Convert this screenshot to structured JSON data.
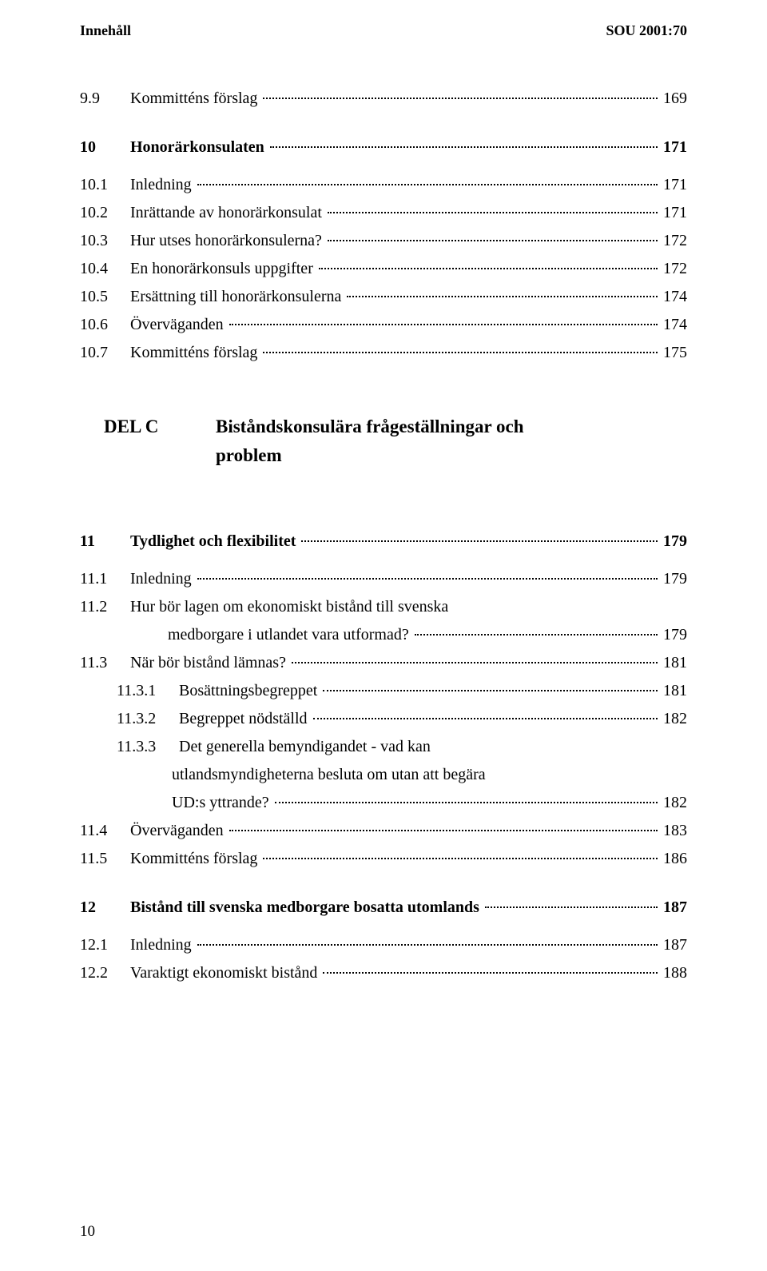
{
  "header": {
    "left": "Innehåll",
    "right": "SOU 2001:70"
  },
  "footer": {
    "page": "10"
  },
  "delc": {
    "label": "DEL C",
    "title_l1": "Biståndskonsulära frågeställningar och",
    "title_l2": "problem"
  },
  "toc": {
    "r1": {
      "num": "9.9",
      "label": "Kommitténs förslag",
      "page": "169"
    },
    "r2": {
      "num": "10",
      "label": "Honorärkonsulaten",
      "page": "171"
    },
    "r3": {
      "num": "10.1",
      "label": "Inledning",
      "page": "171"
    },
    "r4": {
      "num": "10.2",
      "label": "Inrättande av honorärkonsulat",
      "page": "171"
    },
    "r5": {
      "num": "10.3",
      "label": "Hur utses honorärkonsulerna?",
      "page": "172"
    },
    "r6": {
      "num": "10.4",
      "label": "En honorärkonsuls uppgifter",
      "page": "172"
    },
    "r7": {
      "num": "10.5",
      "label": "Ersättning till honorärkonsulerna",
      "page": "174"
    },
    "r8": {
      "num": "10.6",
      "label": "Överväganden",
      "page": "174"
    },
    "r9": {
      "num": "10.7",
      "label": "Kommitténs förslag",
      "page": "175"
    },
    "r10": {
      "num": "11",
      "label": "Tydlighet och flexibilitet",
      "page": "179"
    },
    "r11": {
      "num": "11.1",
      "label": "Inledning",
      "page": "179"
    },
    "r12": {
      "num": "11.2",
      "label_l1": "Hur bör lagen om ekonomiskt bistånd till svenska",
      "label_l2": "medborgare i utlandet vara utformad?",
      "page": "179"
    },
    "r13": {
      "num": "11.3",
      "label": "När bör bistånd lämnas?",
      "page": "181"
    },
    "r14": {
      "num": "11.3.1",
      "label": "Bosättningsbegreppet",
      "page": "181"
    },
    "r15": {
      "num": "11.3.2",
      "label": "Begreppet nödställd",
      "page": "182"
    },
    "r16": {
      "num": "11.3.3",
      "label_l1": "Det generella bemyndigandet - vad kan",
      "label_l2": "utlandsmyndigheterna besluta om utan att begära",
      "label_l3": "UD:s yttrande?",
      "page": "182"
    },
    "r17": {
      "num": "11.4",
      "label": "Överväganden",
      "page": "183"
    },
    "r18": {
      "num": "11.5",
      "label": "Kommitténs förslag",
      "page": "186"
    },
    "r19": {
      "num": "12",
      "label": "Bistånd till svenska medborgare bosatta utomlands",
      "page": "187"
    },
    "r20": {
      "num": "12.1",
      "label": "Inledning",
      "page": "187"
    },
    "r21": {
      "num": "12.2",
      "label": "Varaktigt ekonomiskt bistånd",
      "page": "188"
    }
  }
}
